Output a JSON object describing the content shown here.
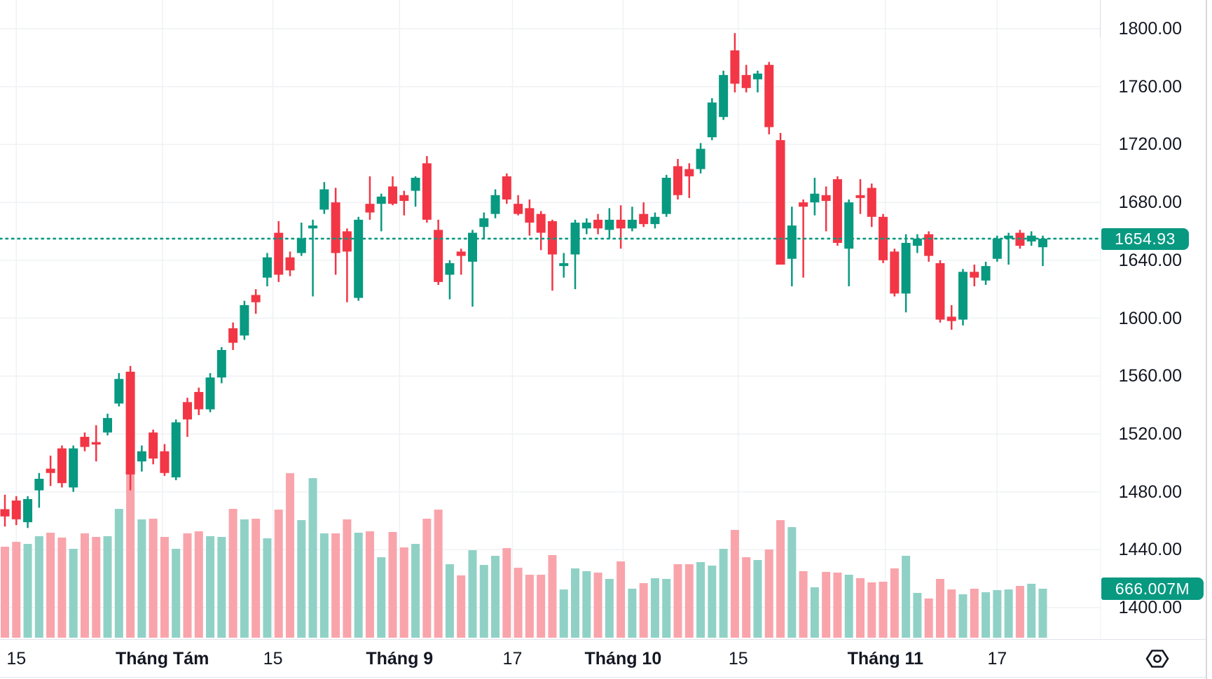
{
  "chart_data": {
    "type": "candlestick_with_volume",
    "title": "",
    "legend_position": "none",
    "grid": true,
    "price_scale": {
      "tick_labels": [
        "1800.00",
        "1760.00",
        "1720.00",
        "1680.00",
        "1640.00",
        "1600.00",
        "1560.00",
        "1520.00",
        "1480.00",
        "1440.00",
        "1400.00"
      ],
      "tick_values": [
        1800,
        1760,
        1720,
        1680,
        1640,
        1600,
        1560,
        1520,
        1480,
        1440,
        1400
      ],
      "ylim": [
        1390,
        1820
      ],
      "last_price": 1654.93,
      "last_price_label": "1654.93",
      "volume_label": "666.007M",
      "volume_unit": "M"
    },
    "time_scale": {
      "ticks": [
        {
          "label": "15",
          "major": false,
          "i": 1.0
        },
        {
          "label": "Tháng Tám",
          "major": true,
          "i": 13.8
        },
        {
          "label": "15",
          "major": false,
          "i": 23.5
        },
        {
          "label": "Tháng 9",
          "major": true,
          "i": 34.6
        },
        {
          "label": "17",
          "major": false,
          "i": 44.5
        },
        {
          "label": "Tháng 10",
          "major": true,
          "i": 54.2
        },
        {
          "label": "15",
          "major": false,
          "i": 64.3
        },
        {
          "label": "Tháng 11",
          "major": true,
          "i": 77.2
        },
        {
          "label": "17",
          "major": false,
          "i": 87.0
        }
      ]
    },
    "candles_format": [
      "open",
      "high",
      "low",
      "close",
      "volume_millions"
    ],
    "candles": [
      [
        1468,
        1478,
        1456,
        1463,
        1237
      ],
      [
        1474,
        1477,
        1457,
        1461,
        1303
      ],
      [
        1459,
        1477,
        1455,
        1475,
        1275
      ],
      [
        1481,
        1493,
        1469,
        1489,
        1380
      ],
      [
        1496,
        1505,
        1484,
        1493,
        1427
      ],
      [
        1510,
        1512,
        1483,
        1486,
        1361
      ],
      [
        1483,
        1512,
        1480,
        1510,
        1208
      ],
      [
        1518,
        1521,
        1508,
        1511,
        1418
      ],
      [
        1514,
        1526,
        1501,
        1513,
        1370
      ],
      [
        1521,
        1534,
        1519,
        1531,
        1380
      ],
      [
        1541,
        1562,
        1539,
        1558,
        1751
      ],
      [
        1563,
        1567,
        1481,
        1492,
        2255
      ],
      [
        1501,
        1512,
        1494,
        1508,
        1608
      ],
      [
        1521,
        1523,
        1499,
        1503,
        1617
      ],
      [
        1508,
        1513,
        1491,
        1493,
        1370
      ],
      [
        1490,
        1530,
        1488,
        1528,
        1208
      ],
      [
        1542,
        1545,
        1518,
        1530,
        1418
      ],
      [
        1549,
        1552,
        1533,
        1537,
        1446
      ],
      [
        1537,
        1562,
        1535,
        1559,
        1380
      ],
      [
        1559,
        1580,
        1555,
        1578,
        1370
      ],
      [
        1593,
        1597,
        1578,
        1583,
        1751
      ],
      [
        1588,
        1612,
        1585,
        1609,
        1608
      ],
      [
        1616,
        1620,
        1603,
        1611,
        1617
      ],
      [
        1628,
        1645,
        1622,
        1642,
        1351
      ],
      [
        1659,
        1667,
        1625,
        1630,
        1741
      ],
      [
        1642,
        1646,
        1629,
        1633,
        2236
      ],
      [
        1645,
        1666,
        1643,
        1655,
        1598
      ],
      [
        1662,
        1668,
        1615,
        1664,
        2169
      ],
      [
        1675,
        1694,
        1672,
        1689,
        1418
      ],
      [
        1680,
        1690,
        1630,
        1645,
        1418
      ],
      [
        1660,
        1662,
        1611,
        1646,
        1608
      ],
      [
        1614,
        1670,
        1612,
        1668,
        1427
      ],
      [
        1679,
        1698,
        1668,
        1673,
        1446
      ],
      [
        1679,
        1686,
        1660,
        1684,
        1094
      ],
      [
        1691,
        1698,
        1678,
        1679,
        1437
      ],
      [
        1685,
        1688,
        1671,
        1681,
        1227
      ],
      [
        1688,
        1698,
        1677,
        1697,
        1275
      ],
      [
        1707,
        1712,
        1666,
        1668,
        1617
      ],
      [
        1661,
        1668,
        1623,
        1625,
        1741
      ],
      [
        1630,
        1640,
        1613,
        1638,
        999
      ],
      [
        1646,
        1648,
        1630,
        1643,
        847
      ],
      [
        1639,
        1661,
        1608,
        1659,
        1189
      ],
      [
        1663,
        1673,
        1655,
        1669,
        989
      ],
      [
        1672,
        1689,
        1669,
        1685,
        1113
      ],
      [
        1698,
        1700,
        1679,
        1682,
        1218
      ],
      [
        1679,
        1685,
        1671,
        1672,
        951
      ],
      [
        1676,
        1682,
        1657,
        1666,
        856
      ],
      [
        1672,
        1674,
        1647,
        1659,
        856
      ],
      [
        1667,
        1668,
        1619,
        1644,
        1123
      ],
      [
        1636,
        1645,
        1628,
        1638,
        656
      ],
      [
        1644,
        1668,
        1620,
        1666,
        942
      ],
      [
        1662,
        1669,
        1658,
        1666,
        904
      ],
      [
        1668,
        1672,
        1658,
        1662,
        885
      ],
      [
        1661,
        1676,
        1655,
        1668,
        799
      ],
      [
        1668,
        1678,
        1648,
        1662,
        1037
      ],
      [
        1662,
        1677,
        1660,
        1668,
        666
      ],
      [
        1672,
        1680,
        1663,
        1665,
        742
      ],
      [
        1665,
        1673,
        1662,
        1670,
        809
      ],
      [
        1672,
        1699,
        1670,
        1697,
        799
      ],
      [
        1705,
        1710,
        1682,
        1685,
        999
      ],
      [
        1703,
        1707,
        1683,
        1698,
        999
      ],
      [
        1703,
        1721,
        1700,
        1717,
        1028
      ],
      [
        1725,
        1752,
        1723,
        1749,
        980
      ],
      [
        1739,
        1771,
        1737,
        1768,
        1208
      ],
      [
        1785,
        1797,
        1756,
        1762,
        1465
      ],
      [
        1768,
        1775,
        1756,
        1759,
        1094
      ],
      [
        1765,
        1771,
        1756,
        1769,
        1056
      ],
      [
        1775,
        1777,
        1727,
        1732,
        1199
      ],
      [
        1723,
        1728,
        1637,
        1637,
        1598
      ],
      [
        1641,
        1677,
        1622,
        1664,
        1503
      ],
      [
        1680,
        1682,
        1628,
        1677,
        904
      ],
      [
        1680,
        1697,
        1671,
        1686,
        685
      ],
      [
        1685,
        1691,
        1660,
        1681,
        894
      ],
      [
        1696,
        1698,
        1650,
        1652,
        885
      ],
      [
        1648,
        1682,
        1622,
        1680,
        856
      ],
      [
        1685,
        1696,
        1672,
        1683,
        809
      ],
      [
        1690,
        1693,
        1663,
        1670,
        752
      ],
      [
        1670,
        1672,
        1638,
        1640,
        761
      ],
      [
        1646,
        1648,
        1615,
        1617,
        942
      ],
      [
        1617,
        1658,
        1604,
        1652,
        1113
      ],
      [
        1650,
        1658,
        1645,
        1655,
        609
      ],
      [
        1658,
        1660,
        1639,
        1643,
        533
      ],
      [
        1638,
        1640,
        1597,
        1599,
        799
      ],
      [
        1601,
        1609,
        1592,
        1598,
        656
      ],
      [
        1599,
        1634,
        1595,
        1632,
        590
      ],
      [
        1632,
        1637,
        1622,
        1628,
        666
      ],
      [
        1626,
        1639,
        1623,
        1636,
        618
      ],
      [
        1641,
        1657,
        1639,
        1655,
        647
      ],
      [
        1655,
        1659,
        1637,
        1657,
        656
      ],
      [
        1659,
        1661,
        1648,
        1650,
        704
      ],
      [
        1653,
        1660,
        1650,
        1657,
        733
      ],
      [
        1649,
        1657,
        1636,
        1654.93,
        666.007
      ]
    ],
    "colors": {
      "up": "#089981",
      "down": "#f23645",
      "volume_up": "#90d1c6",
      "volume_down": "#f9a4ab",
      "grid": "#eff1f4",
      "axis_text": "#131722",
      "badge_background": "#089981",
      "badge_text": "#ffffff",
      "price_line": "#089981",
      "background": "#ffffff"
    }
  },
  "icons": {
    "bottom_right": "hexagon-dot-icon"
  }
}
